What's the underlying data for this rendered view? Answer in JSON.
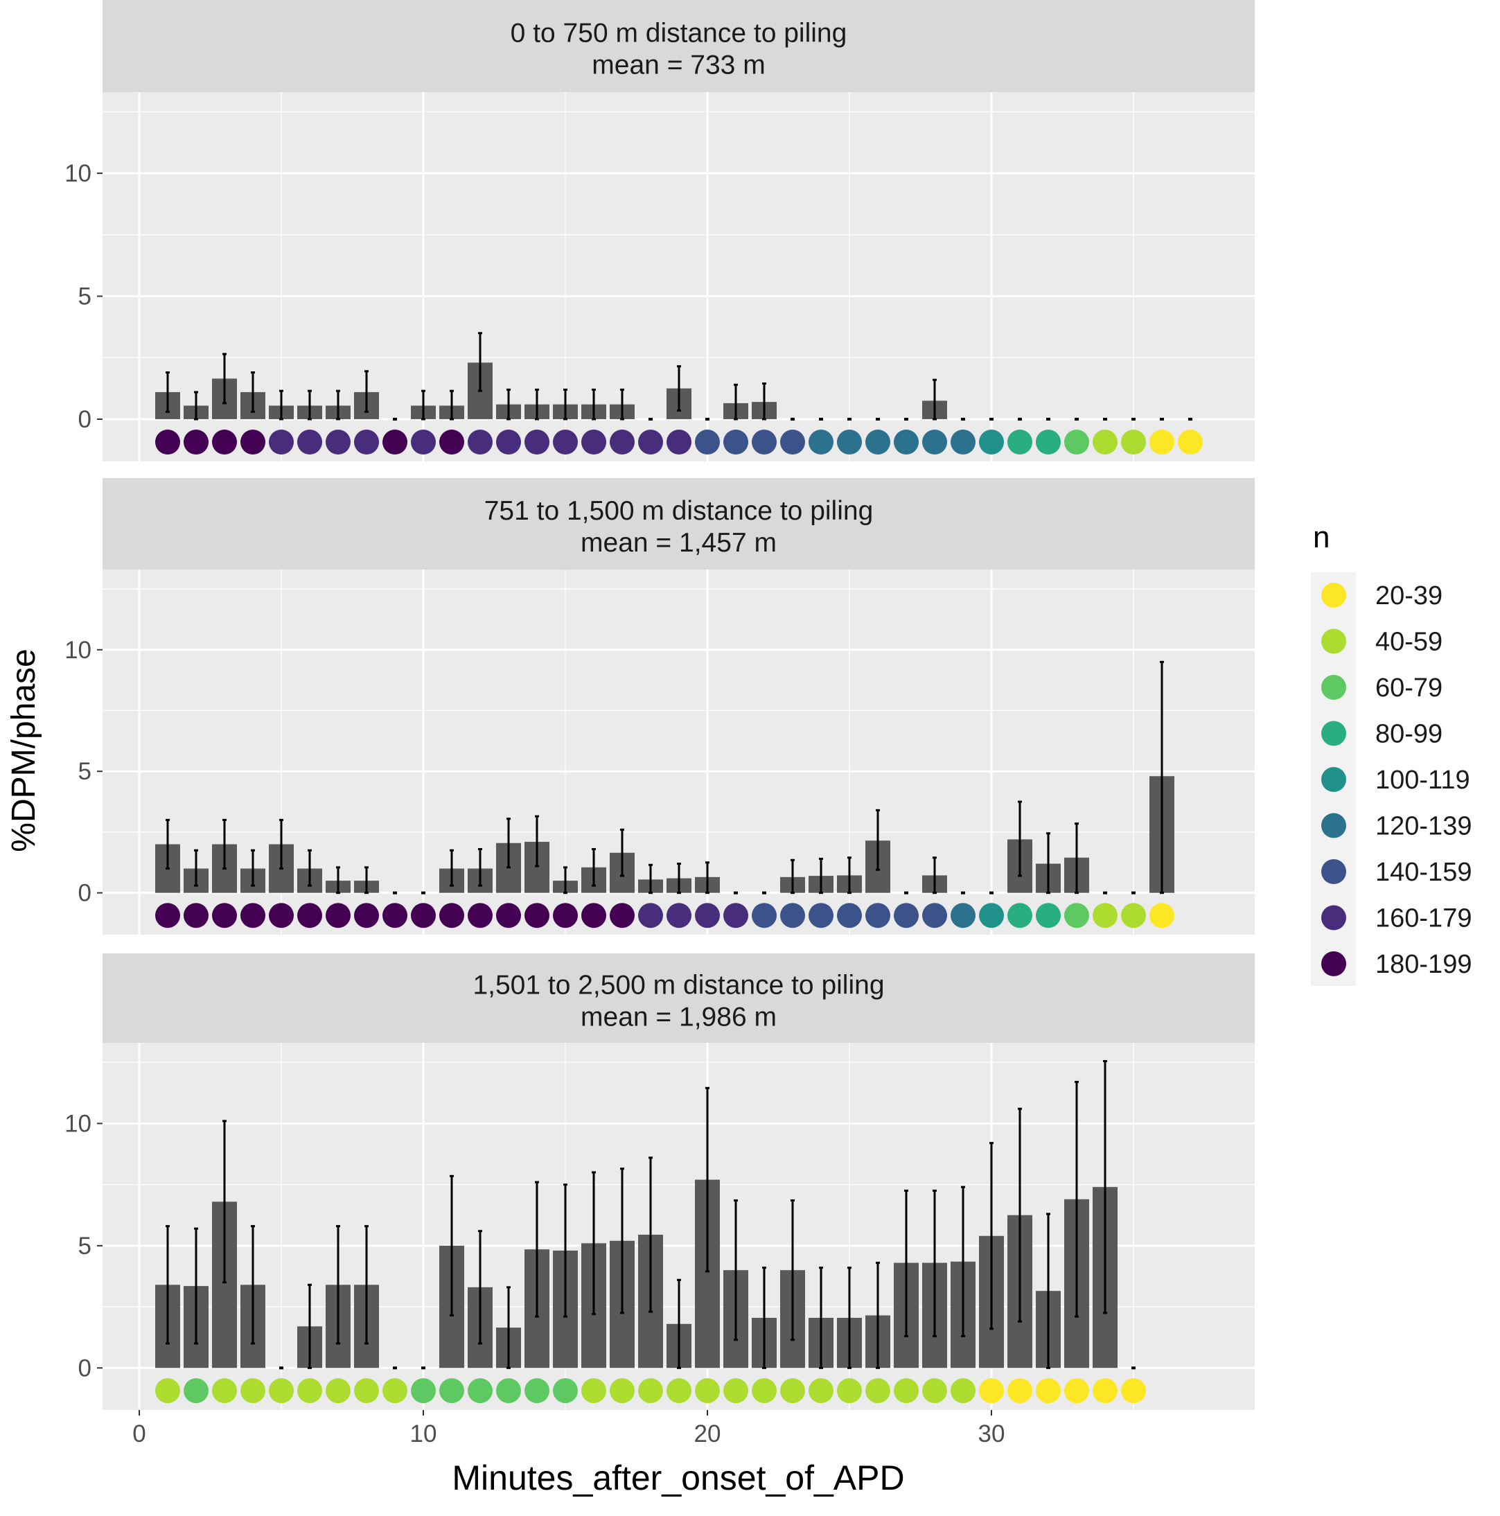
{
  "chart_data": {
    "type": "bar",
    "xlabel": "Minutes_after_onset_of_APD",
    "ylabel": "%DPM/phase",
    "xlim": [
      -0.5,
      39.5
    ],
    "ylim": [
      -1.72,
      13.3
    ],
    "x_ticks": [
      0,
      10,
      20,
      30
    ],
    "y_ticks": [
      0,
      5,
      10
    ],
    "grid": true,
    "legend": {
      "title": "n",
      "placement": "right",
      "entries": [
        {
          "label": "20-39",
          "color": "#fde725"
        },
        {
          "label": "40-59",
          "color": "#addc30"
        },
        {
          "label": "60-79",
          "color": "#5ec962"
        },
        {
          "label": "80-99",
          "color": "#28ae80"
        },
        {
          "label": "100-119",
          "color": "#21918c"
        },
        {
          "label": "120-139",
          "color": "#2c728e"
        },
        {
          "label": "140-159",
          "color": "#3b528b"
        },
        {
          "label": "160-179",
          "color": "#472d7b"
        },
        {
          "label": "180-199",
          "color": "#440154"
        }
      ]
    },
    "bar_color": "#595959",
    "panels": [
      {
        "title_line1": "0 to 750 m distance to piling",
        "title_line2": "mean = 733 m",
        "values": [
          1.1,
          0.55,
          1.65,
          1.1,
          0.55,
          0.55,
          0.55,
          1.1,
          0,
          0.55,
          0.55,
          2.3,
          0.6,
          0.6,
          0.6,
          0.6,
          0.6,
          0,
          1.25,
          0,
          0.65,
          0.7,
          0,
          0,
          0,
          0,
          0,
          0.75,
          0,
          0,
          0,
          0,
          0,
          0,
          0,
          0,
          0
        ],
        "upper": [
          1.9,
          1.1,
          2.65,
          1.9,
          1.15,
          1.15,
          1.15,
          1.95,
          0,
          1.15,
          1.15,
          3.5,
          1.2,
          1.2,
          1.2,
          1.2,
          1.2,
          0,
          2.15,
          0,
          1.4,
          1.45,
          0,
          0,
          0,
          0,
          0,
          1.6,
          0,
          0,
          0,
          0,
          0,
          0,
          0,
          0,
          0
        ],
        "lower": [
          0.3,
          0,
          0.65,
          0.3,
          0,
          0,
          0,
          0.3,
          0,
          0,
          0,
          1.15,
          0,
          0,
          0,
          0,
          0,
          0,
          0.35,
          0,
          0,
          0,
          0,
          0,
          0,
          0,
          0,
          0,
          0,
          0,
          0,
          0,
          0,
          0,
          0,
          0,
          0
        ],
        "n": [
          "180-199",
          "180-199",
          "180-199",
          "180-199",
          "160-179",
          "160-179",
          "160-179",
          "160-179",
          "180-199",
          "160-179",
          "180-199",
          "160-179",
          "160-179",
          "160-179",
          "160-179",
          "160-179",
          "160-179",
          "160-179",
          "160-179",
          "140-159",
          "140-159",
          "140-159",
          "140-159",
          "120-139",
          "120-139",
          "120-139",
          "120-139",
          "120-139",
          "120-139",
          "100-119",
          "80-99",
          "80-99",
          "60-79",
          "40-59",
          "40-59",
          "20-39",
          "20-39"
        ]
      },
      {
        "title_line1": "751 to 1,500 m distance to piling",
        "title_line2": "mean = 1,457 m",
        "values": [
          2.0,
          1.0,
          2.0,
          1.0,
          2.0,
          1.0,
          0.5,
          0.5,
          0,
          0,
          1.0,
          1.0,
          2.05,
          2.1,
          0.5,
          1.05,
          1.65,
          0.55,
          0.6,
          0.65,
          0,
          0,
          0.65,
          0.7,
          0.72,
          2.15,
          0,
          0.72,
          0,
          0,
          2.2,
          1.2,
          1.45,
          0,
          0,
          4.8
        ],
        "upper": [
          3.0,
          1.75,
          3.0,
          1.75,
          3.0,
          1.75,
          1.05,
          1.05,
          0,
          0,
          1.75,
          1.8,
          3.05,
          3.15,
          1.05,
          1.8,
          2.6,
          1.15,
          1.2,
          1.25,
          0,
          0,
          1.35,
          1.4,
          1.45,
          3.4,
          0,
          1.45,
          0,
          0,
          3.75,
          2.45,
          2.85,
          0,
          0,
          9.5
        ],
        "lower": [
          1.0,
          0.3,
          1.0,
          0.3,
          1.0,
          0.3,
          0,
          0,
          0,
          0,
          0.3,
          0.3,
          1.05,
          1.1,
          0,
          0.3,
          0.7,
          0,
          0,
          0,
          0,
          0,
          0,
          0,
          0,
          0.95,
          0,
          0,
          0,
          0,
          0.7,
          0,
          0,
          0,
          0,
          0
        ],
        "n": [
          "180-199",
          "180-199",
          "180-199",
          "180-199",
          "180-199",
          "180-199",
          "180-199",
          "180-199",
          "180-199",
          "180-199",
          "180-199",
          "180-199",
          "180-199",
          "180-199",
          "180-199",
          "180-199",
          "180-199",
          "160-179",
          "160-179",
          "160-179",
          "160-179",
          "140-159",
          "140-159",
          "140-159",
          "140-159",
          "140-159",
          "140-159",
          "140-159",
          "120-139",
          "100-119",
          "80-99",
          "80-99",
          "60-79",
          "40-59",
          "40-59",
          "20-39"
        ]
      },
      {
        "title_line1": "1,501 to 2,500 m distance to piling",
        "title_line2": "mean = 1,986 m",
        "values": [
          3.4,
          3.35,
          6.8,
          3.4,
          0,
          1.7,
          3.4,
          3.4,
          0,
          0,
          5.0,
          3.3,
          1.65,
          4.85,
          4.8,
          5.1,
          5.2,
          5.45,
          1.8,
          7.7,
          4.0,
          2.05,
          4.0,
          2.05,
          2.05,
          2.15,
          4.3,
          4.3,
          4.35,
          5.4,
          6.25,
          3.15,
          6.9,
          7.4,
          0
        ],
        "upper": [
          5.8,
          5.7,
          10.1,
          5.8,
          0,
          3.4,
          5.8,
          5.8,
          0,
          0,
          7.85,
          5.6,
          3.3,
          7.6,
          7.5,
          8.0,
          8.15,
          8.6,
          3.6,
          11.45,
          6.85,
          4.1,
          6.85,
          4.1,
          4.1,
          4.3,
          7.25,
          7.25,
          7.4,
          9.2,
          10.6,
          6.3,
          11.7,
          12.55,
          0
        ],
        "lower": [
          1.0,
          1.0,
          3.5,
          1.0,
          0,
          0,
          1.0,
          1.0,
          0,
          0,
          2.15,
          1.0,
          0,
          2.1,
          2.1,
          2.2,
          2.25,
          2.3,
          0,
          3.95,
          1.15,
          0,
          1.15,
          0,
          0,
          0,
          1.3,
          1.3,
          1.3,
          1.6,
          1.9,
          0,
          2.1,
          2.25,
          0
        ],
        "n": [
          "40-59",
          "60-79",
          "40-59",
          "40-59",
          "40-59",
          "40-59",
          "40-59",
          "40-59",
          "40-59",
          "60-79",
          "60-79",
          "60-79",
          "60-79",
          "60-79",
          "60-79",
          "40-59",
          "40-59",
          "40-59",
          "40-59",
          "40-59",
          "40-59",
          "40-59",
          "40-59",
          "40-59",
          "40-59",
          "40-59",
          "40-59",
          "40-59",
          "40-59",
          "20-39",
          "20-39",
          "20-39",
          "20-39",
          "20-39",
          "20-39"
        ]
      }
    ]
  }
}
